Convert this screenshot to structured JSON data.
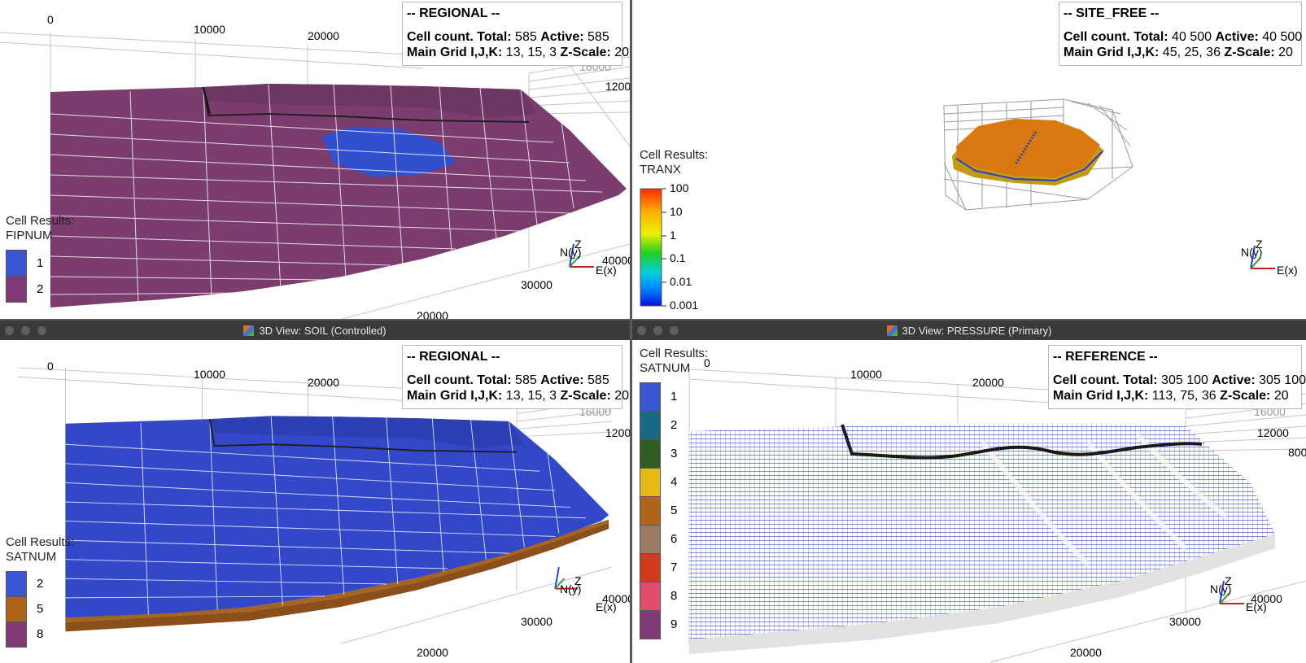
{
  "views": {
    "top_left": {
      "info": {
        "case_name": "-- REGIONAL --",
        "cell_count_label": "Cell count. Total:",
        "total": "585",
        "active_label": "Active:",
        "active": "585",
        "grid_label": "Main Grid I,J,K:",
        "grid": "13, 15, 3",
        "zscale_label": "Z-Scale:",
        "zscale": "20"
      },
      "legend": {
        "title_line1": "Cell Results:",
        "title_line2": "FIPNUM",
        "categories": [
          {
            "label": "1",
            "color": "#3a56d4"
          },
          {
            "label": "2",
            "color": "#7f3a78"
          }
        ]
      },
      "axis_labels": {
        "x0": "0",
        "x1": "10000",
        "x2": "20000",
        "y_top": "16000",
        "y_mid": "1200",
        "x_right": "40000",
        "x_front": "30000",
        "y_front": "20000"
      },
      "compass": {
        "up": "Z",
        "north": "N(y)",
        "east": "E(x)"
      }
    },
    "top_right": {
      "info": {
        "case_name": "-- SITE_FREE --",
        "cell_count_label": "Cell count. Total:",
        "total": "40 500",
        "active_label": "Active:",
        "active": "40 500",
        "grid_label": "Main Grid I,J,K:",
        "grid": "45, 25, 36",
        "zscale_label": "Z-Scale:",
        "zscale": "20"
      },
      "legend": {
        "title_line1": "Cell Results:",
        "title_line2": "TRANX",
        "ticks": [
          "100",
          "10",
          "1",
          "0.1",
          "0.01",
          "0.001"
        ]
      },
      "compass": {
        "up": "Z",
        "north": "N(y)",
        "east": "E(x)"
      }
    },
    "bottom_left": {
      "title": "3D View: SOIL (Controlled)",
      "info": {
        "case_name": "-- REGIONAL --",
        "cell_count_label": "Cell count. Total:",
        "total": "585",
        "active_label": "Active:",
        "active": "585",
        "grid_label": "Main Grid I,J,K:",
        "grid": "13, 15, 3",
        "zscale_label": "Z-Scale:",
        "zscale": "20"
      },
      "legend": {
        "title_line1": "Cell Results:",
        "title_line2": "SATNUM",
        "categories": [
          {
            "label": "2",
            "color": "#3a56d4"
          },
          {
            "label": "5",
            "color": "#b0661a"
          },
          {
            "label": "8",
            "color": "#7f3a78"
          }
        ]
      },
      "axis_labels": {
        "x0": "0",
        "x1": "10000",
        "x2": "20000",
        "y_top": "16000",
        "y_mid": "1200",
        "x_right": "40000",
        "x_front": "30000",
        "y_front": "20000"
      },
      "compass": {
        "up": "Z",
        "north": "N(y)",
        "east": "E(x)"
      }
    },
    "bottom_right": {
      "title": "3D View: PRESSURE (Primary)",
      "info": {
        "case_name": "-- REFERENCE --",
        "cell_count_label": "Cell count. Total:",
        "total": "305 100",
        "active_label": "Active:",
        "active": "305 100",
        "grid_label": "Main Grid I,J,K:",
        "grid": "113, 75, 36",
        "zscale_label": "Z-Scale:",
        "zscale": "20"
      },
      "legend": {
        "title_line1": "Cell Results:",
        "title_line2": "SATNUM",
        "categories": [
          {
            "label": "1",
            "color": "#3a56d4"
          },
          {
            "label": "2",
            "color": "#196a86"
          },
          {
            "label": "3",
            "color": "#2e5e22"
          },
          {
            "label": "4",
            "color": "#e8b816"
          },
          {
            "label": "5",
            "color": "#b0661a"
          },
          {
            "label": "6",
            "color": "#9b7b66"
          },
          {
            "label": "7",
            "color": "#d13a1e"
          },
          {
            "label": "8",
            "color": "#df4f6c"
          },
          {
            "label": "9",
            "color": "#7f3a78"
          }
        ]
      },
      "axis_labels": {
        "x0": "0",
        "x1": "10000",
        "x2": "20000",
        "y_top": "16000",
        "y_mid": "12000",
        "y_right": "800",
        "x_right": "40000",
        "x_front": "30000",
        "y_front": "20000"
      },
      "compass": {
        "up": "Z",
        "north": "N(y)",
        "east": "E(x)"
      }
    }
  },
  "colors": {
    "fipnum_2": "#7a3d6e",
    "fipnum_1": "#2f4fcf",
    "satnum_2": "#3347c9",
    "satnum_5": "#a5641f",
    "mesh_blue": "#2a3fc0",
    "mesh_orange": "#d8780f"
  }
}
